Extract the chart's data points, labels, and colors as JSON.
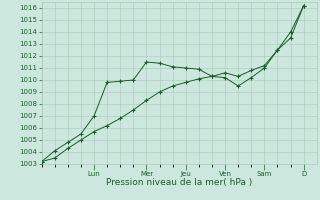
{
  "xlabel": "Pression niveau de la mer( hPa )",
  "bg_color": "#cce8de",
  "plot_bg_color": "#cce8de",
  "grid_color": "#aacaba",
  "line_color": "#1a5c2a",
  "ylim": [
    1003,
    1016.5
  ],
  "yticks": [
    1003,
    1004,
    1005,
    1006,
    1007,
    1008,
    1009,
    1010,
    1011,
    1012,
    1013,
    1014,
    1015,
    1016
  ],
  "day_labels": [
    "Lun",
    "Mer",
    "Jeu",
    "Ven",
    "Sam",
    "D"
  ],
  "day_positions": [
    4,
    8,
    11,
    14,
    17,
    20
  ],
  "xlim": [
    0,
    21
  ],
  "series1_x": [
    0,
    1,
    2,
    3,
    4,
    5,
    6,
    7,
    8,
    9,
    10,
    11,
    12,
    13,
    14,
    15,
    16,
    17,
    18,
    19,
    20
  ],
  "series1_y": [
    1003.2,
    1004.1,
    1004.8,
    1005.5,
    1007.0,
    1009.8,
    1009.9,
    1010.0,
    1011.5,
    1011.4,
    1011.1,
    1011.0,
    1010.9,
    1010.3,
    1010.2,
    1009.5,
    1010.2,
    1011.0,
    1012.5,
    1014.0,
    1016.2
  ],
  "series2_x": [
    0,
    1,
    2,
    3,
    4,
    5,
    6,
    7,
    8,
    9,
    10,
    11,
    12,
    13,
    14,
    15,
    16,
    17,
    18,
    19,
    20
  ],
  "series2_y": [
    1003.2,
    1003.5,
    1004.3,
    1005.0,
    1005.7,
    1006.2,
    1006.8,
    1007.5,
    1008.3,
    1009.0,
    1009.5,
    1009.8,
    1010.1,
    1010.3,
    1010.6,
    1010.3,
    1010.8,
    1011.2,
    1012.5,
    1013.5,
    1016.2
  ],
  "tick_label_fontsize": 5.0,
  "xlabel_fontsize": 6.5,
  "linewidth": 0.7,
  "markersize": 3.0
}
